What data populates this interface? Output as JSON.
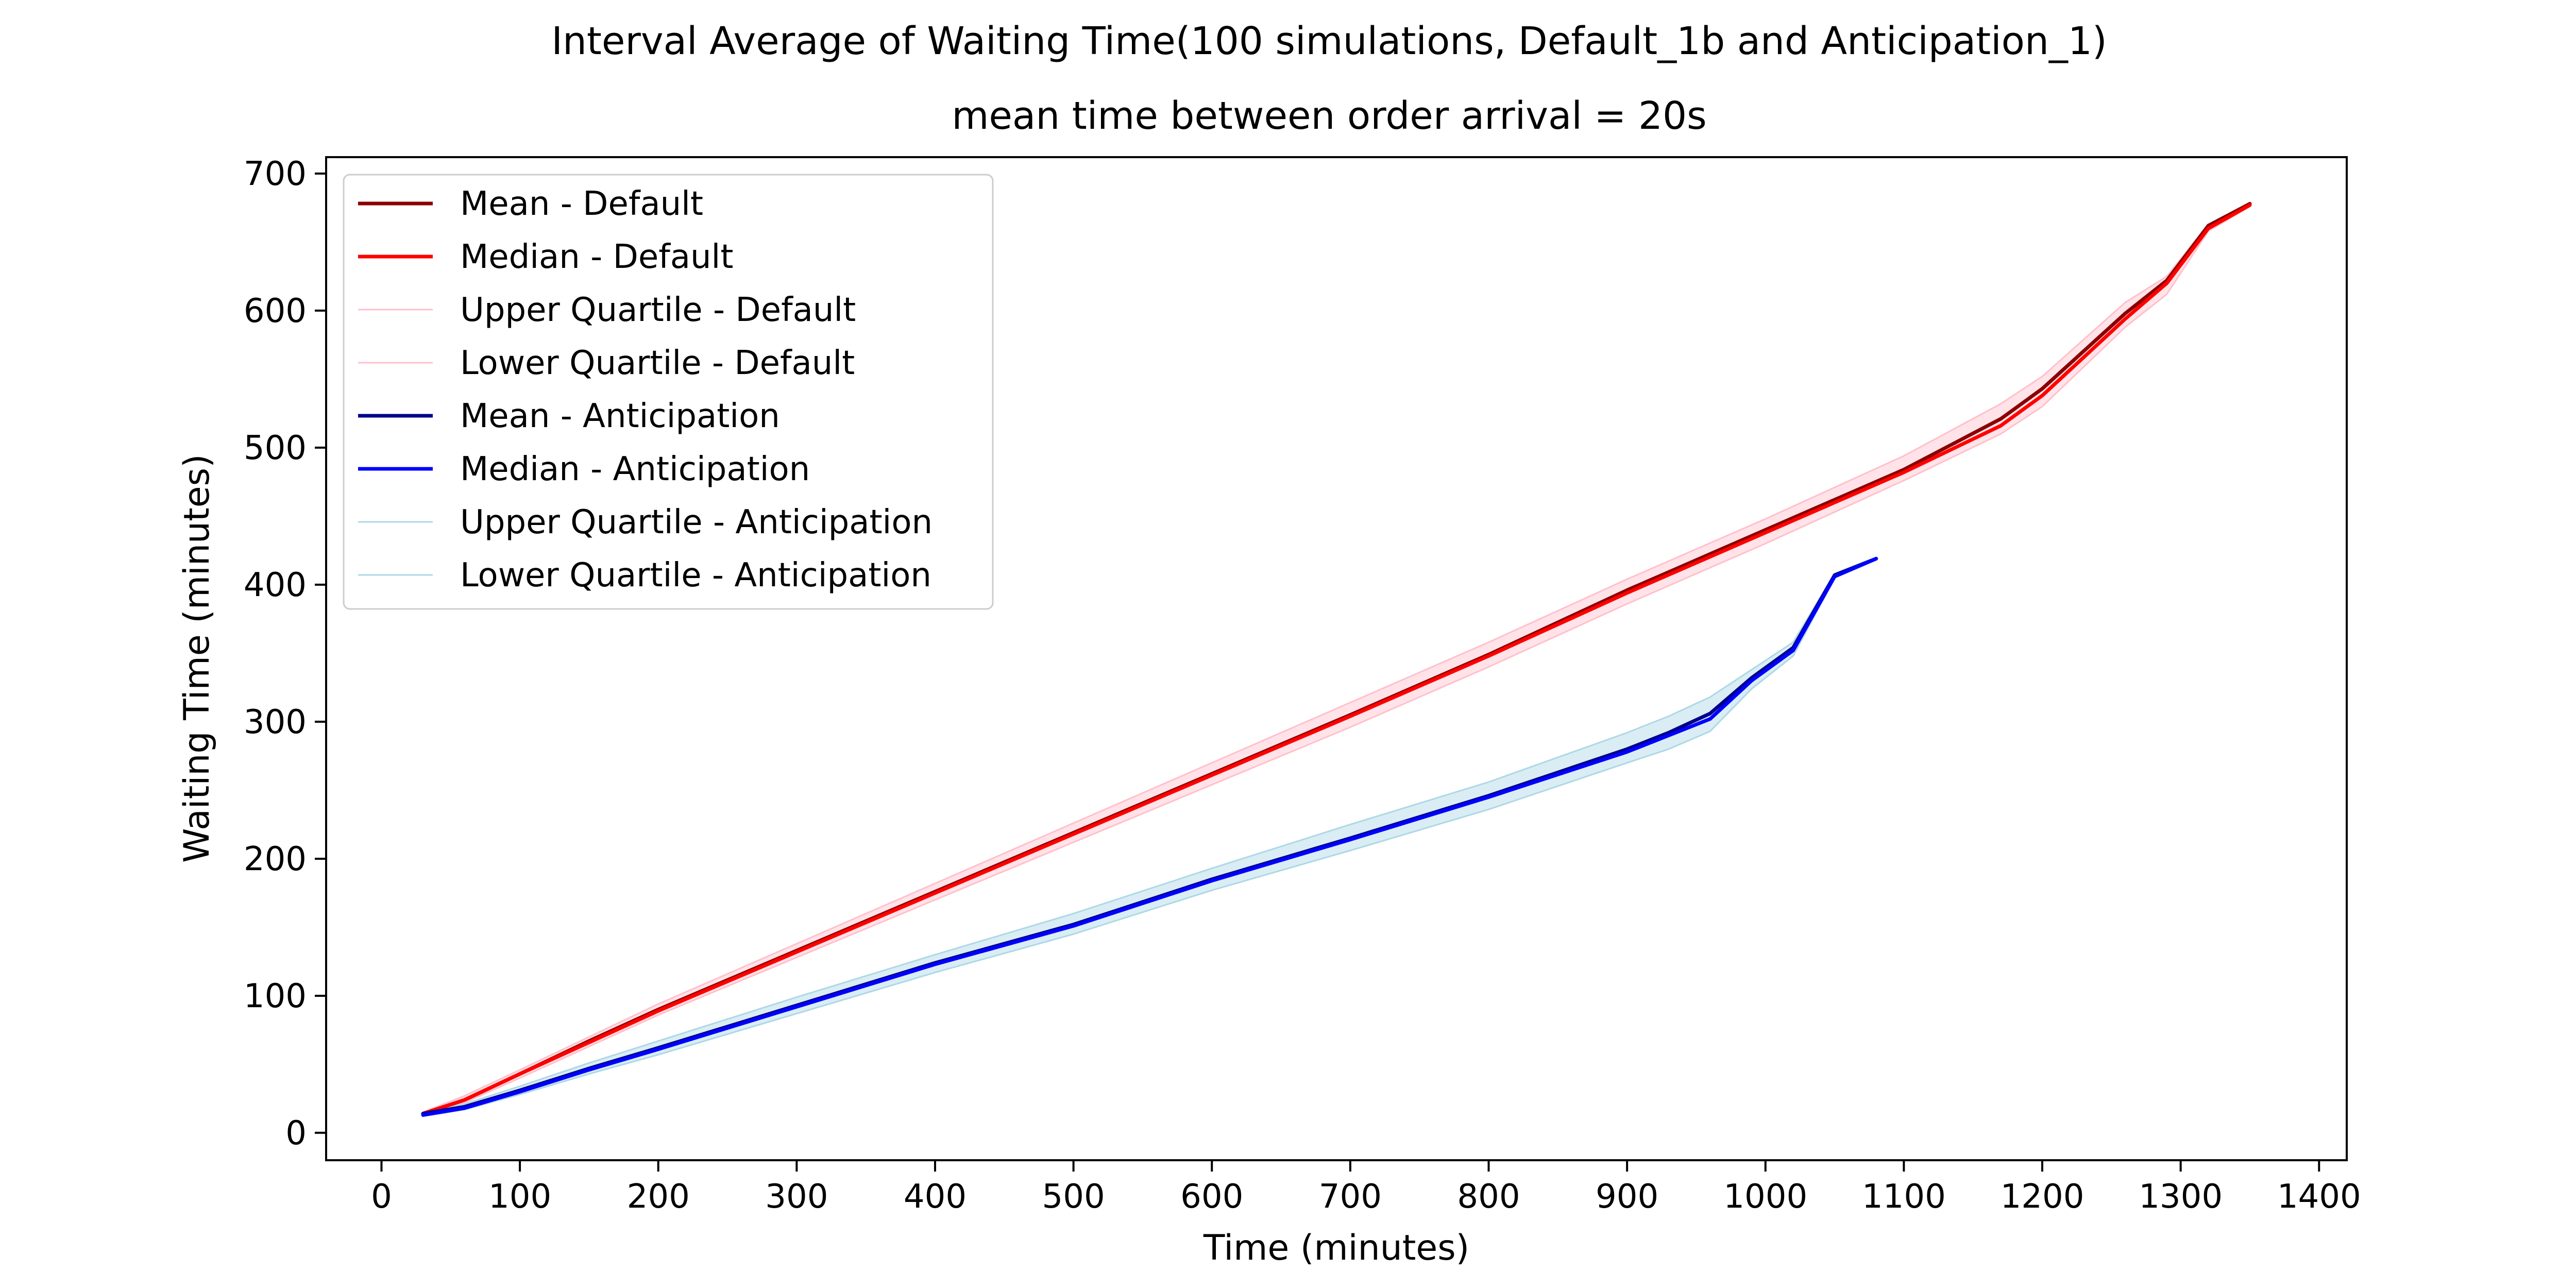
{
  "chart_data": {
    "type": "line",
    "title": "Interval Average of Waiting Time(100 simulations, Default_1b and Anticipation_1)",
    "subtitle": "mean time between order arrival = 20s",
    "xlabel": "Time (minutes)",
    "ylabel": "Waiting Time (minutes)",
    "xlim": [
      -40,
      1420
    ],
    "ylim": [
      -20,
      712
    ],
    "xticks": [
      0,
      100,
      200,
      300,
      400,
      500,
      600,
      700,
      800,
      900,
      1000,
      1100,
      1200,
      1300,
      1400
    ],
    "yticks": [
      0,
      100,
      200,
      300,
      400,
      500,
      600,
      700
    ],
    "grid": false,
    "legend_position": "top-left",
    "series": [
      {
        "name": "Mean - Default",
        "color": "#8b0000",
        "x": [
          30,
          60,
          100,
          150,
          200,
          300,
          400,
          500,
          600,
          700,
          800,
          900,
          1000,
          1100,
          1170,
          1200,
          1260,
          1290,
          1320,
          1350
        ],
        "y": [
          14,
          24,
          43,
          67,
          90,
          133,
          176,
          219,
          262,
          305,
          349,
          396,
          440,
          484,
          521,
          543,
          598,
          622,
          662,
          678
        ]
      },
      {
        "name": "Median - Default",
        "color": "#ff0000",
        "x": [
          30,
          60,
          100,
          150,
          200,
          300,
          400,
          500,
          600,
          700,
          800,
          900,
          1000,
          1100,
          1170,
          1200,
          1260,
          1290,
          1320,
          1350
        ],
        "y": [
          14,
          24,
          43,
          66,
          89,
          132,
          175,
          218,
          261,
          304,
          348,
          394,
          438,
          482,
          516,
          538,
          594,
          620,
          660,
          677
        ]
      },
      {
        "name": "Upper Quartile - Default",
        "color": "#ffc0cb",
        "x": [
          30,
          60,
          100,
          150,
          200,
          300,
          400,
          500,
          600,
          700,
          800,
          900,
          1000,
          1100,
          1170,
          1200,
          1260,
          1290,
          1320,
          1350
        ],
        "y": [
          15,
          27,
          46,
          70,
          94,
          138,
          182,
          226,
          270,
          314,
          358,
          404,
          448,
          494,
          532,
          552,
          606,
          625,
          663,
          678
        ]
      },
      {
        "name": "Lower Quartile - Default",
        "color": "#ffc0cb",
        "x": [
          30,
          60,
          100,
          150,
          200,
          300,
          400,
          500,
          600,
          700,
          800,
          900,
          1000,
          1100,
          1170,
          1200,
          1260,
          1290,
          1320,
          1350
        ],
        "y": [
          13,
          22,
          40,
          63,
          86,
          128,
          170,
          212,
          254,
          296,
          340,
          386,
          430,
          476,
          510,
          530,
          588,
          612,
          658,
          676
        ]
      },
      {
        "name": "Mean - Anticipation",
        "color": "#00008b",
        "x": [
          30,
          60,
          100,
          150,
          200,
          300,
          400,
          500,
          600,
          700,
          800,
          900,
          930,
          960,
          990,
          1020,
          1050,
          1080
        ],
        "y": [
          14,
          19,
          31,
          47,
          62,
          93,
          124,
          152,
          185,
          215,
          246,
          280,
          292,
          306,
          332,
          354,
          407,
          419
        ]
      },
      {
        "name": "Median - Anticipation",
        "color": "#0000ff",
        "x": [
          30,
          60,
          100,
          150,
          200,
          300,
          400,
          500,
          600,
          700,
          800,
          900,
          930,
          960,
          990,
          1020,
          1050,
          1080
        ],
        "y": [
          13,
          18,
          30,
          46,
          61,
          92,
          123,
          151,
          184,
          214,
          245,
          278,
          290,
          302,
          330,
          352,
          406,
          419
        ]
      },
      {
        "name": "Upper Quartile - Anticipation",
        "color": "#add8e6",
        "x": [
          30,
          60,
          100,
          150,
          200,
          300,
          400,
          500,
          600,
          700,
          800,
          900,
          930,
          960,
          990,
          1020,
          1050,
          1080
        ],
        "y": [
          15,
          21,
          34,
          51,
          67,
          99,
          130,
          160,
          193,
          225,
          256,
          292,
          304,
          318,
          338,
          358,
          408,
          420
        ]
      },
      {
        "name": "Lower Quartile - Anticipation",
        "color": "#add8e6",
        "x": [
          30,
          60,
          100,
          150,
          200,
          300,
          400,
          500,
          600,
          700,
          800,
          900,
          930,
          960,
          990,
          1020,
          1050,
          1080
        ],
        "y": [
          12,
          17,
          28,
          43,
          57,
          87,
          117,
          145,
          177,
          206,
          236,
          270,
          280,
          293,
          324,
          348,
          405,
          418
        ]
      }
    ]
  }
}
